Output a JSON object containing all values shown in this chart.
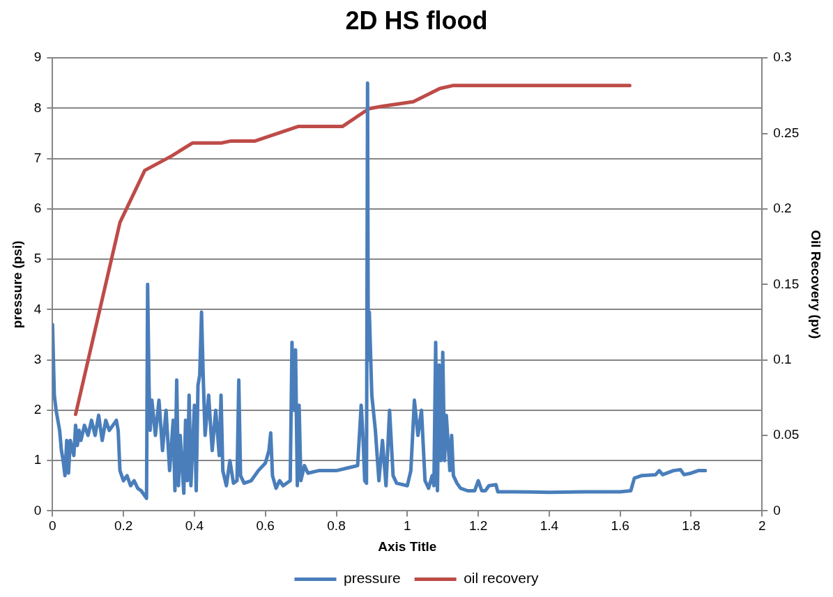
{
  "chart_data": {
    "type": "line",
    "title": "2D HS flood",
    "xlabel": "Axis Title",
    "ylabel": "pressure (psi)",
    "y2label": "Oil Recovery (pv)",
    "xlim": [
      0,
      2
    ],
    "xticks": [
      0,
      0.2,
      0.4,
      0.6,
      0.8,
      1,
      1.2,
      1.4,
      1.6,
      1.8,
      2
    ],
    "ylim": [
      0,
      9
    ],
    "yticks": [
      0,
      1,
      2,
      3,
      4,
      5,
      6,
      7,
      8,
      9
    ],
    "y2lim": [
      0,
      0.3
    ],
    "y2ticks": [
      0,
      0.05,
      0.1,
      0.15,
      0.2,
      0.25,
      0.3
    ],
    "grid": "y",
    "legend": "bottom",
    "marker": "none",
    "line_style": "solid",
    "series": [
      {
        "name": "pressure",
        "color": "#4a7ebb",
        "x": [
          0,
          0.005,
          0.01,
          0.02,
          0.025,
          0.03,
          0.035,
          0.04,
          0.045,
          0.05,
          0.06,
          0.065,
          0.07,
          0.075,
          0.08,
          0.09,
          0.1,
          0.11,
          0.12,
          0.13,
          0.14,
          0.15,
          0.16,
          0.17,
          0.18,
          0.185,
          0.19,
          0.2,
          0.21,
          0.22,
          0.23,
          0.24,
          0.25,
          0.26,
          0.265,
          0.268,
          0.272,
          0.275,
          0.28,
          0.29,
          0.3,
          0.31,
          0.32,
          0.33,
          0.34,
          0.345,
          0.35,
          0.355,
          0.36,
          0.37,
          0.375,
          0.38,
          0.385,
          0.39,
          0.4,
          0.405,
          0.41,
          0.415,
          0.42,
          0.425,
          0.43,
          0.44,
          0.45,
          0.46,
          0.47,
          0.475,
          0.48,
          0.49,
          0.5,
          0.51,
          0.52,
          0.525,
          0.53,
          0.54,
          0.56,
          0.58,
          0.6,
          0.61,
          0.615,
          0.62,
          0.63,
          0.64,
          0.65,
          0.67,
          0.675,
          0.68,
          0.685,
          0.69,
          0.695,
          0.7,
          0.71,
          0.72,
          0.75,
          0.8,
          0.83,
          0.86,
          0.87,
          0.875,
          0.88,
          0.885,
          0.888,
          0.89,
          0.893,
          0.9,
          0.91,
          0.92,
          0.93,
          0.94,
          0.95,
          0.96,
          0.97,
          1,
          1.01,
          1.02,
          1.03,
          1.04,
          1.05,
          1.06,
          1.07,
          1.075,
          1.08,
          1.085,
          1.09,
          1.095,
          1.1,
          1.105,
          1.11,
          1.12,
          1.125,
          1.13,
          1.14,
          1.15,
          1.17,
          1.19,
          1.2,
          1.21,
          1.22,
          1.23,
          1.25,
          1.255,
          1.3,
          1.4,
          1.5,
          1.6,
          1.63,
          1.64,
          1.66,
          1.7,
          1.71,
          1.72,
          1.75,
          1.77,
          1.78,
          1.8,
          1.82,
          1.84
        ],
        "values": [
          3.7,
          2.3,
          2.0,
          1.6,
          1.2,
          1.0,
          0.7,
          1.4,
          0.75,
          1.4,
          1.1,
          1.7,
          1.3,
          1.6,
          1.4,
          1.7,
          1.5,
          1.8,
          1.5,
          1.9,
          1.4,
          1.8,
          1.6,
          1.7,
          1.8,
          1.6,
          0.8,
          0.6,
          0.7,
          0.5,
          0.6,
          0.45,
          0.4,
          0.3,
          0.25,
          4.5,
          2.5,
          1.6,
          2.2,
          1.5,
          2.2,
          1.2,
          2.0,
          0.8,
          1.8,
          0.4,
          2.6,
          0.5,
          1.5,
          0.35,
          1.8,
          0.6,
          2.3,
          0.5,
          2.1,
          0.4,
          2.5,
          2.7,
          3.95,
          2.6,
          1.5,
          2.3,
          1.2,
          2.0,
          1.1,
          2.3,
          0.8,
          0.5,
          1.0,
          0.55,
          0.6,
          2.6,
          0.7,
          0.55,
          0.6,
          0.8,
          0.95,
          1.2,
          1.55,
          0.7,
          0.45,
          0.6,
          0.5,
          0.6,
          3.35,
          2.0,
          3.2,
          0.5,
          2.1,
          0.6,
          0.9,
          0.75,
          0.8,
          0.8,
          0.85,
          0.9,
          2.1,
          1.5,
          0.6,
          0.55,
          8.5,
          3.0,
          3.95,
          2.3,
          1.6,
          0.6,
          1.4,
          0.5,
          2.0,
          0.7,
          0.55,
          0.5,
          0.8,
          2.2,
          1.5,
          2.0,
          0.6,
          0.45,
          0.7,
          0.5,
          3.35,
          0.4,
          2.9,
          1.0,
          3.15,
          1.0,
          1.9,
          0.8,
          1.5,
          0.7,
          0.55,
          0.45,
          0.4,
          0.4,
          0.6,
          0.4,
          0.4,
          0.5,
          0.52,
          0.38,
          0.38,
          0.37,
          0.38,
          0.38,
          0.4,
          0.65,
          0.7,
          0.72,
          0.8,
          0.72,
          0.8,
          0.82,
          0.72,
          0.75,
          0.8,
          0.8
        ]
      },
      {
        "name": "oil recovery",
        "color": "#be4b48",
        "axis": "y2",
        "x": [
          0.065,
          0.19,
          0.26,
          0.335,
          0.395,
          0.476,
          0.503,
          0.571,
          0.692,
          0.817,
          0.892,
          0.93,
          1.017,
          1.092,
          1.128,
          1.627
        ],
        "values": [
          0.064,
          0.191,
          0.2255,
          0.235,
          0.2437,
          0.2437,
          0.245,
          0.245,
          0.2546,
          0.2546,
          0.2664,
          0.268,
          0.271,
          0.2798,
          0.2817,
          0.2817
        ]
      }
    ]
  }
}
